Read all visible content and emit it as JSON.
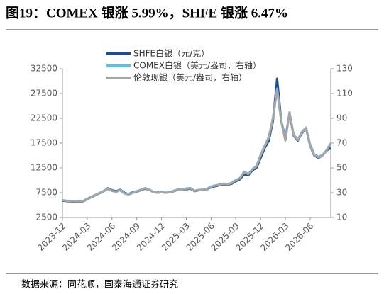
{
  "chart_data": {
    "type": "line",
    "title": "图19：COMEX 银涨 5.99%，SHFE 银涨 6.47%",
    "source": "数据来源：同花顺，国泰海通证券研究",
    "x": [
      "2023-12",
      null,
      null,
      null,
      null,
      null,
      "2024-03",
      null,
      null,
      null,
      null,
      null,
      "2024-06",
      null,
      null,
      null,
      null,
      null,
      "2024-09",
      null,
      null,
      null,
      null,
      null,
      "2024-12",
      null,
      null,
      null,
      null,
      null,
      "2025-03",
      null,
      null,
      null,
      null,
      null,
      "2025-06",
      null,
      null,
      null,
      null,
      null,
      "2025-09",
      null,
      null,
      null,
      null,
      null,
      "2025-12",
      null,
      null,
      null,
      null,
      null,
      "2026-03",
      null,
      null,
      null,
      null,
      null,
      "2026-06",
      null,
      null,
      null,
      null,
      null
    ],
    "ylim": [
      2500,
      32500
    ],
    "yticks": [
      2500,
      7500,
      12500,
      17500,
      22500,
      27500,
      32500
    ],
    "y2lim": [
      10,
      130
    ],
    "y2ticks": [
      10,
      30,
      50,
      70,
      90,
      110,
      130
    ],
    "legend": "upper left",
    "series": [
      {
        "name": "SHFE白银（元/克）",
        "color": "#1f4e8c",
        "values": [
          5900,
          5800,
          5750,
          5700,
          5700,
          5750,
          6200,
          6600,
          7000,
          7400,
          7800,
          8400,
          8000,
          7800,
          8100,
          7500,
          7200,
          7600,
          7700,
          8000,
          8300,
          8100,
          7700,
          7500,
          7600,
          7500,
          7600,
          7800,
          8100,
          8100,
          8200,
          8300,
          7800,
          8000,
          8100,
          8200,
          8600,
          8800,
          9000,
          9200,
          9100,
          9300,
          9800,
          10200,
          11200,
          11000,
          12000,
          12500,
          14500,
          16500,
          18000,
          22000,
          30500,
          22000,
          18500,
          23500,
          19000,
          18000,
          19500,
          20500,
          17000,
          15000,
          14500,
          15000,
          16000,
          16500
        ]
      },
      {
        "name": "COMEX白银（美元/盎司，右轴）",
        "color": "#5bc0eb",
        "axis": "y2",
        "values": [
          24.0,
          23.6,
          23.4,
          23.2,
          23.1,
          23.3,
          25.2,
          26.8,
          28.3,
          29.9,
          31.5,
          33.2,
          31.6,
          30.9,
          32.1,
          29.6,
          28.6,
          30.0,
          31.2,
          32.4,
          33.8,
          32.6,
          30.6,
          30.2,
          30.8,
          30.1,
          30.6,
          31.6,
          32.8,
          32.6,
          33.4,
          33.8,
          31.6,
          32.3,
          32.6,
          33.2,
          35.0,
          35.9,
          36.6,
          37.4,
          36.9,
          38.0,
          40.2,
          41.8,
          47.0,
          45.2,
          49.0,
          51.5,
          60.5,
          68.0,
          75.0,
          90.5,
          114.0,
          88.0,
          72.5,
          95.0,
          77.0,
          72.8,
          79.0,
          82.5,
          69.0,
          61.0,
          59.0,
          60.5,
          64.5,
          70.0
        ]
      },
      {
        "name": "伦敦现银（美元/盎司，右轴）",
        "color": "#a6a6a6",
        "axis": "y2",
        "values": [
          23.9,
          23.5,
          23.3,
          23.1,
          23.0,
          23.2,
          25.0,
          26.6,
          28.1,
          29.7,
          31.3,
          33.0,
          31.4,
          30.7,
          31.9,
          29.4,
          28.4,
          29.8,
          31.0,
          32.2,
          33.6,
          32.4,
          30.4,
          30.0,
          30.6,
          29.9,
          30.4,
          31.4,
          32.6,
          32.4,
          33.2,
          33.6,
          31.4,
          32.1,
          32.4,
          33.0,
          34.8,
          35.7,
          36.4,
          37.2,
          36.7,
          37.8,
          40.0,
          41.6,
          46.6,
          45.0,
          48.8,
          51.2,
          60.0,
          67.5,
          74.5,
          90.0,
          113.0,
          87.5,
          72.0,
          94.5,
          76.5,
          72.5,
          78.5,
          82.0,
          68.5,
          60.5,
          58.5,
          60.0,
          64.0,
          69.5
        ]
      }
    ]
  }
}
